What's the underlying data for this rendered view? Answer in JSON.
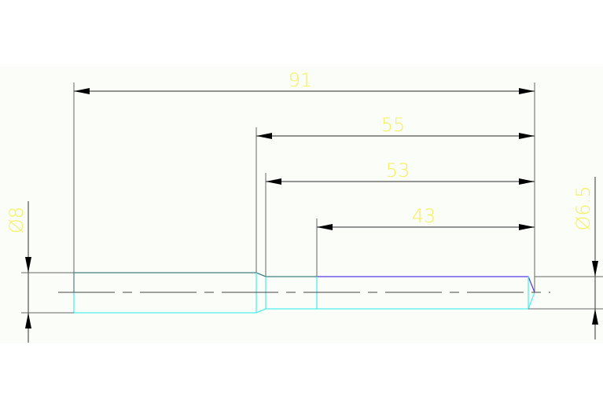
{
  "drawing": {
    "dimensions": {
      "overall_length": "91",
      "shoulder_length": "55",
      "reduced_section_length": "53",
      "thread_length": "43",
      "large_diameter": "Ø8",
      "small_diameter": "Ø6.5"
    },
    "colors": {
      "background": "#fbfdf8",
      "dimension_text": "#f4f060",
      "dimension_lines": "#555555",
      "part_outline": "#4ff0f0",
      "thread_outline": "#5a3ee0"
    }
  }
}
